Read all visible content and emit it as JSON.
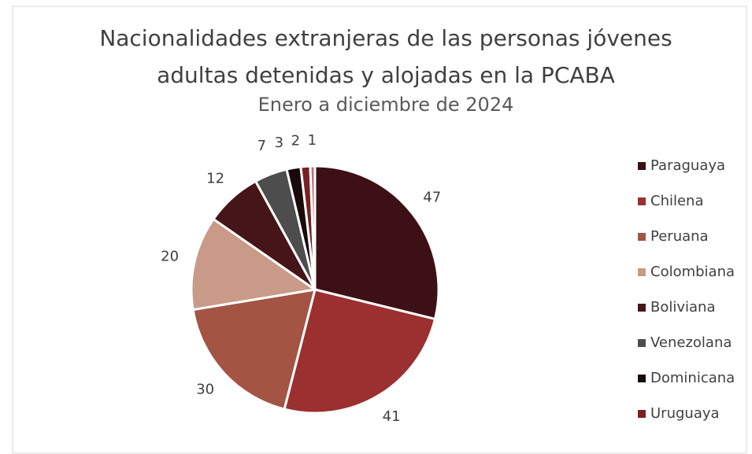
{
  "chart_data": {
    "type": "pie",
    "title": "Nacionalidades extranjeras de las personas jóvenes adultas detenidas y alojadas en la PCABA",
    "title_lines": [
      "Nacionalidades extranjeras de las personas jóvenes",
      "adultas detenidas y alojadas en la PCABA"
    ],
    "subtitle": "Enero a diciembre de 2024",
    "categories": [
      "Paraguaya",
      "Chilena",
      "Peruana",
      "Colombiana",
      "Boliviana",
      "Venezolana",
      "Dominicana",
      "Uruguaya",
      null
    ],
    "values": [
      47,
      41,
      30,
      20,
      12,
      7,
      3,
      2,
      1
    ],
    "colors": [
      "#3d1016",
      "#9c2f2f",
      "#a35443",
      "#c99a88",
      "#451519",
      "#4d4d4d",
      "#1a0a0a",
      "#7a1f24",
      "#b07a70"
    ],
    "legend": "right"
  }
}
